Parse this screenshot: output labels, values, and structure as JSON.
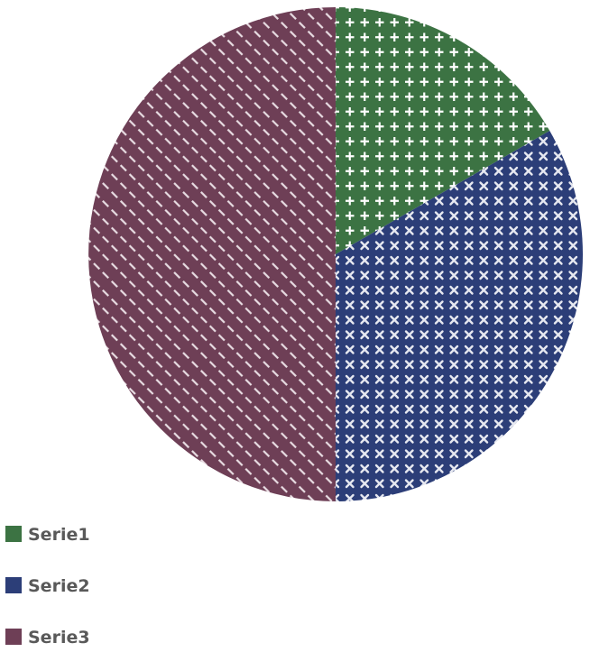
{
  "chart_data": {
    "type": "pie",
    "title": "",
    "start_angle_deg": 0,
    "direction": "clockwise",
    "legend_position": "bottom-left",
    "slices": [
      {
        "label": "Serie1",
        "value": 1,
        "color": "#3c7343",
        "pattern": "plus"
      },
      {
        "label": "Serie2",
        "value": 2,
        "color": "#2c3e78",
        "pattern": "cross"
      },
      {
        "label": "Serie3",
        "value": 3,
        "color": "#6e3f56",
        "pattern": "dashed-diagonal"
      }
    ]
  }
}
